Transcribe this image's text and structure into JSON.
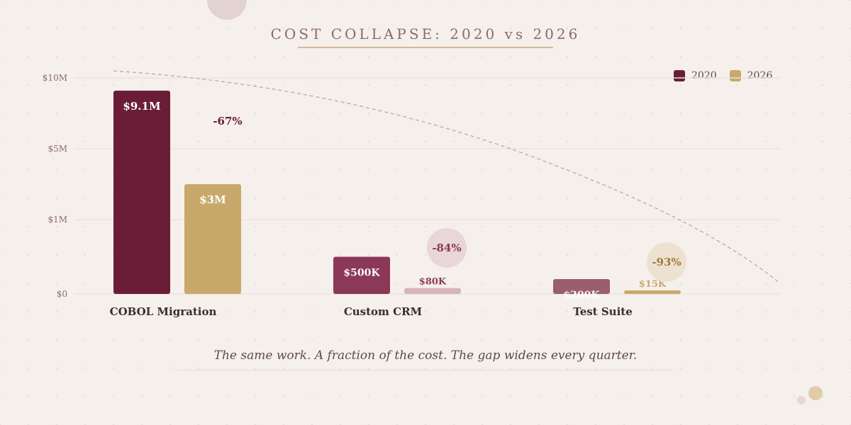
{
  "chart_data": {
    "type": "bar",
    "title": "COST COLLAPSE: 2020 vs 2026",
    "subtitle": "The same work. A fraction of the cost. The gap widens every quarter.",
    "xlabel": "",
    "ylabel": "",
    "y_scale": "non-linear",
    "y_ticks": [
      {
        "value": 0,
        "label": "$0"
      },
      {
        "value": 1000000,
        "label": "$1M"
      },
      {
        "value": 5000000,
        "label": "$5M"
      },
      {
        "value": 10000000,
        "label": "$10M"
      }
    ],
    "grid": true,
    "legend_position": "top-right",
    "categories": [
      "COBOL Migration",
      "Custom CRM",
      "Test Suite"
    ],
    "series": [
      {
        "name": "2020",
        "values": [
          9100000,
          500000,
          200000
        ],
        "labels": [
          "$9.1M",
          "$500K",
          "$200K"
        ],
        "colors": [
          "#6b1d38",
          "#8c3858",
          "#9a5e6f"
        ]
      },
      {
        "name": "2026",
        "values": [
          3000000,
          80000,
          15000
        ],
        "labels": [
          "$3M",
          "$80K",
          "$15K"
        ],
        "colors": [
          "#c9a96b",
          "#d6b4b8",
          "#c9a96b"
        ]
      }
    ],
    "annotations": [
      {
        "category": "COBOL Migration",
        "text": "-67%",
        "color": "#6b1d38"
      },
      {
        "category": "Custom CRM",
        "text": "-84%",
        "color": "#8c3858",
        "circle": "#e8d6d9"
      },
      {
        "category": "Test Suite",
        "text": "-93%",
        "color": "#a37a3c",
        "circle": "#ede2d2"
      }
    ],
    "trend_line": "dashed declining curve"
  },
  "colors": {
    "legend_2020": "#6b1d38",
    "legend_2026": "#c9a96b"
  }
}
